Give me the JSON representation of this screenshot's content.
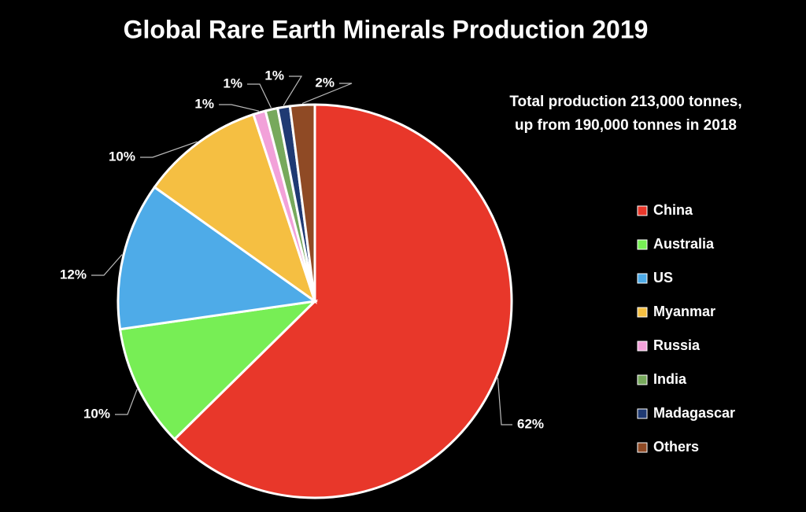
{
  "chart_data": {
    "type": "pie",
    "title": "Global Rare Earth Minerals Production 2019",
    "annotation": [
      "Total production 213,000 tonnes,",
      "up from 190,000 tonnes in 2018"
    ],
    "categories": [
      "China",
      "Australia",
      "US",
      "Myanmar",
      "Russia",
      "India",
      "Madagascar",
      "Others"
    ],
    "values": [
      62,
      10,
      12,
      10,
      1,
      1,
      1,
      2
    ],
    "value_labels": [
      "62%",
      "10%",
      "12%",
      "10%",
      "1%",
      "1%",
      "1%",
      "2%"
    ],
    "colors": [
      "#e8372a",
      "#77ee55",
      "#4eabe8",
      "#f5bf42",
      "#f2a1d9",
      "#77a95c",
      "#1f3a73",
      "#8f4a25"
    ],
    "legend": "right"
  }
}
